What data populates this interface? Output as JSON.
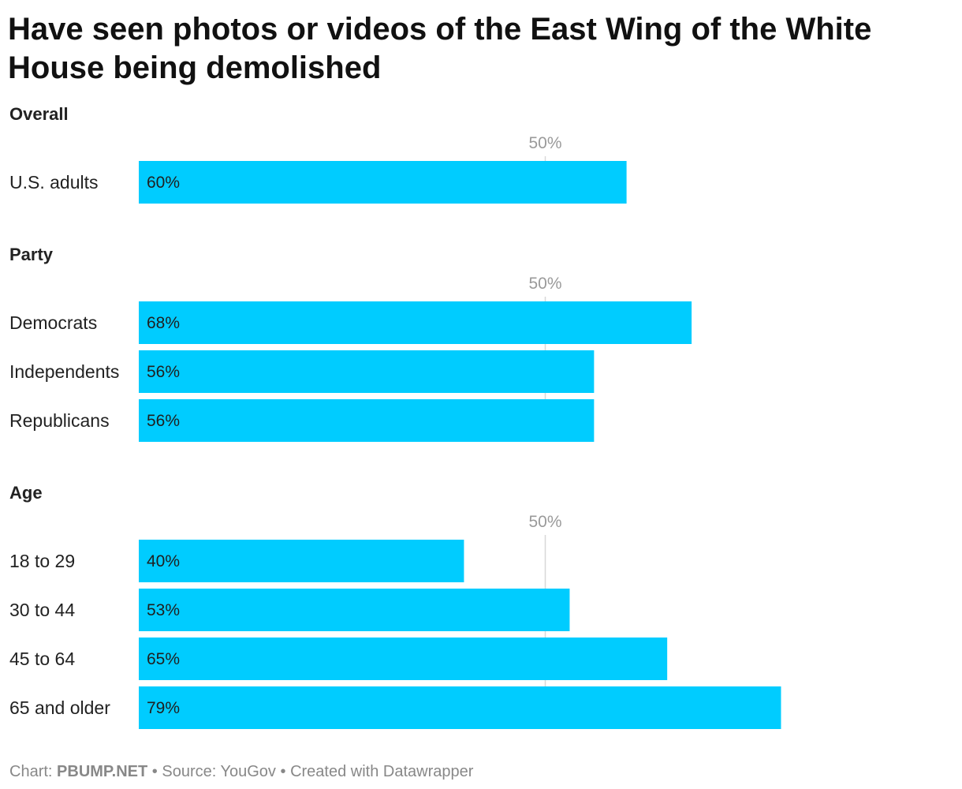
{
  "chart_data": {
    "type": "bar",
    "orientation": "horizontal",
    "title": "Have seen photos or videos of the East Wing of the White House being demolished",
    "title_lines": [
      "Have seen photos or videos of the East Wing of the White",
      "House being demolished"
    ],
    "value_suffix": "%",
    "xlim": [
      0,
      100
    ],
    "reference_line": {
      "value": 50,
      "label": "50%"
    },
    "bar_color": "#00ccff",
    "groups": [
      {
        "name": "Overall",
        "categories": [
          "U.S. adults"
        ],
        "values": [
          60
        ]
      },
      {
        "name": "Party",
        "categories": [
          "Democrats",
          "Independents",
          "Republicans"
        ],
        "values": [
          68,
          56,
          56
        ]
      },
      {
        "name": "Age",
        "categories": [
          "18 to 29",
          "30 to 44",
          "45 to 64",
          "65 and older"
        ],
        "values": [
          40,
          53,
          65,
          79
        ]
      }
    ]
  },
  "footer": {
    "chart_prefix": "Chart: ",
    "chart_by": "PBUMP.NET",
    "separator": " • ",
    "source": "Source: YouGov",
    "created_with": "Created with Datawrapper"
  }
}
